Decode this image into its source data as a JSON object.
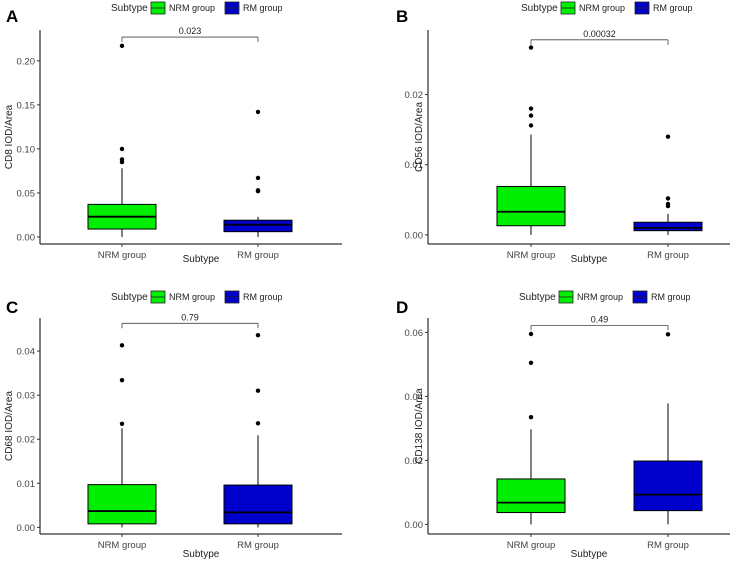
{
  "figure": {
    "background": "#ffffff"
  },
  "chart_data": [
    {
      "type": "boxplot",
      "panel": "A",
      "legend": {
        "title": "Subtype",
        "entries": [
          "NRM group",
          "RM group"
        ],
        "placement": "top"
      },
      "categories": [
        "NRM group",
        "RM group"
      ],
      "colors": [
        "#00ee00",
        "#0000cc"
      ],
      "xlabel": "Subtype",
      "ylabel": "CD8 IOD/Area",
      "ylim": [
        -0.008,
        0.235
      ],
      "yticks": [
        0.0,
        0.05,
        0.1,
        0.15,
        0.2
      ],
      "ytick_labels": [
        "0.00",
        "0.05",
        "0.10",
        "0.15",
        "0.20"
      ],
      "pvalue": "0.023",
      "bracket_y": 0.227,
      "boxes": [
        {
          "q1": 0.009,
          "median": 0.023,
          "q3": 0.037,
          "whisker_low": 0.0,
          "whisker_high": 0.078,
          "outliers": [
            0.085,
            0.088,
            0.1,
            0.217
          ]
        },
        {
          "q1": 0.006,
          "median": 0.014,
          "q3": 0.019,
          "whisker_low": 0.0,
          "whisker_high": 0.023,
          "outliers": [
            0.052,
            0.053,
            0.067,
            0.142
          ]
        }
      ]
    },
    {
      "type": "boxplot",
      "panel": "B",
      "legend": {
        "title": "Subtype",
        "entries": [
          "NRM group",
          "RM group"
        ],
        "placement": "top"
      },
      "categories": [
        "NRM group",
        "RM group"
      ],
      "colors": [
        "#00ee00",
        "#0000cc"
      ],
      "xlabel": "Subtype",
      "ylabel": "CD56 IOD/Area",
      "ylim": [
        -0.0013,
        0.0292
      ],
      "yticks": [
        0.0,
        0.01,
        0.02
      ],
      "ytick_labels": [
        "0.00",
        "0.01",
        "0.02"
      ],
      "pvalue": "0.00032",
      "bracket_y": 0.0278,
      "boxes": [
        {
          "q1": 0.0013,
          "median": 0.0033,
          "q3": 0.0069,
          "whisker_low": 0.0,
          "whisker_high": 0.0143,
          "outliers": [
            0.0156,
            0.017,
            0.018,
            0.0267
          ]
        },
        {
          "q1": 0.0006,
          "median": 0.001,
          "q3": 0.0018,
          "whisker_low": 0.0,
          "whisker_high": 0.003,
          "outliers": [
            0.0041,
            0.0044,
            0.0052,
            0.014
          ]
        }
      ]
    },
    {
      "type": "boxplot",
      "panel": "C",
      "legend": {
        "title": "Subtype",
        "entries": [
          "NRM group",
          "RM group"
        ],
        "placement": "top"
      },
      "categories": [
        "NRM group",
        "RM group"
      ],
      "colors": [
        "#00ee00",
        "#0000cc"
      ],
      "xlabel": "Subtype",
      "ylabel": "CD68 IOD/Area",
      "ylim": [
        -0.0015,
        0.0475
      ],
      "yticks": [
        0.0,
        0.01,
        0.02,
        0.03,
        0.04
      ],
      "ytick_labels": [
        "0.00",
        "0.01",
        "0.02",
        "0.03",
        "0.04"
      ],
      "pvalue": "0.79",
      "bracket_y": 0.0463,
      "boxes": [
        {
          "q1": 0.0008,
          "median": 0.0037,
          "q3": 0.0097,
          "whisker_low": 0.0,
          "whisker_high": 0.0225,
          "outliers": [
            0.0235,
            0.0334,
            0.0413
          ]
        },
        {
          "q1": 0.0008,
          "median": 0.0034,
          "q3": 0.0096,
          "whisker_low": 0.0,
          "whisker_high": 0.0209,
          "outliers": [
            0.0236,
            0.031,
            0.0436
          ]
        }
      ]
    },
    {
      "type": "boxplot",
      "panel": "D",
      "legend": {
        "title": "Subtype",
        "entries": [
          "NRM group",
          "RM group"
        ],
        "placement": "top"
      },
      "categories": [
        "NRM group",
        "RM group"
      ],
      "colors": [
        "#00ee00",
        "#0000cc"
      ],
      "xlabel": "Subtype",
      "ylabel": "CD138 IOD/Area",
      "ylim": [
        -0.003,
        0.0645
      ],
      "yticks": [
        0.0,
        0.02,
        0.04,
        0.06
      ],
      "ytick_labels": [
        "0.00",
        "0.02",
        "0.04",
        "0.06"
      ],
      "pvalue": "0.49",
      "bracket_y": 0.0622,
      "boxes": [
        {
          "q1": 0.0037,
          "median": 0.0068,
          "q3": 0.0142,
          "whisker_low": 0.0,
          "whisker_high": 0.0297,
          "outliers": [
            0.0335,
            0.0505,
            0.0595
          ]
        },
        {
          "q1": 0.0043,
          "median": 0.0093,
          "q3": 0.0198,
          "whisker_low": 0.0,
          "whisker_high": 0.0378,
          "outliers": [
            0.0594
          ]
        }
      ]
    }
  ]
}
